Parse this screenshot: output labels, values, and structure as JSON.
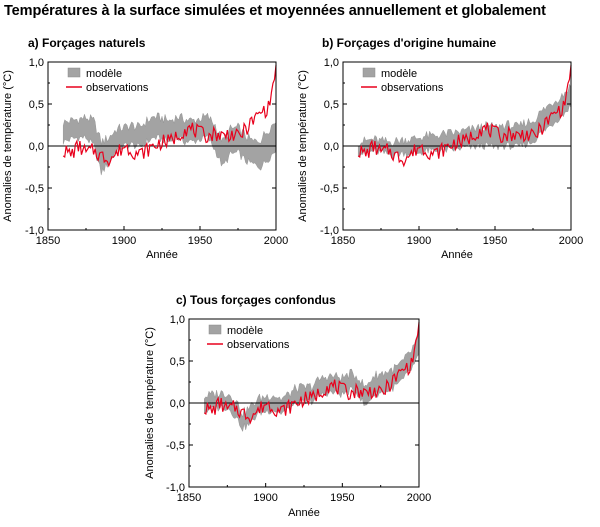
{
  "title": "Températures à la surface simulées et moyennées annuellement et globalement",
  "colors": {
    "model": "#a3a3a3",
    "observations": "#e8001c",
    "zero_line": "#000000"
  },
  "chart_data": [
    {
      "type": "area",
      "panel_title": "a) Forçages  naturels",
      "xlabel": "Année",
      "ylabel": "Anomalies de température (°C)",
      "xlim": [
        1850,
        2000
      ],
      "ylim": [
        -1.0,
        1.0
      ],
      "xticks": [
        "1850",
        "1900",
        "1950",
        "2000"
      ],
      "yticks": [
        "1,0",
        "0,5",
        "0,0",
        "-0,5",
        "-1,0"
      ],
      "legend": [
        "modèle",
        "observations"
      ],
      "x": [
        1860,
        1865,
        1870,
        1875,
        1880,
        1885,
        1890,
        1895,
        1900,
        1905,
        1910,
        1915,
        1920,
        1925,
        1930,
        1935,
        1940,
        1945,
        1950,
        1955,
        1960,
        1965,
        1970,
        1975,
        1980,
        1985,
        1990,
        1995,
        2000
      ],
      "series": [
        {
          "name": "modèle (haut)",
          "values": [
            0.28,
            0.3,
            0.32,
            0.34,
            0.3,
            0.05,
            0.1,
            0.2,
            0.22,
            0.25,
            0.22,
            0.3,
            0.35,
            0.33,
            0.3,
            0.35,
            0.32,
            0.3,
            0.33,
            0.35,
            0.25,
            0.05,
            0.2,
            0.22,
            0.12,
            0.05,
            0.08,
            0.2,
            0.3
          ]
        },
        {
          "name": "modèle (bas)",
          "values": [
            0.05,
            0.08,
            0.1,
            0.1,
            0.0,
            -0.32,
            -0.2,
            -0.05,
            0.0,
            0.02,
            -0.02,
            0.05,
            0.1,
            0.08,
            0.05,
            0.1,
            0.05,
            0.05,
            0.08,
            0.1,
            -0.05,
            -0.25,
            -0.1,
            -0.08,
            -0.18,
            -0.22,
            -0.25,
            -0.15,
            -0.05
          ]
        },
        {
          "name": "observations",
          "values": [
            -0.05,
            -0.1,
            0.0,
            -0.08,
            -0.05,
            -0.12,
            -0.15,
            -0.1,
            0.0,
            -0.05,
            -0.1,
            -0.05,
            0.0,
            0.05,
            0.05,
            0.12,
            0.2,
            0.2,
            0.15,
            0.12,
            0.15,
            0.12,
            0.15,
            0.1,
            0.2,
            0.3,
            0.4,
            0.45,
            0.9
          ]
        }
      ]
    },
    {
      "type": "area",
      "panel_title": "b) Forçages d'origine humaine",
      "xlabel": "Année",
      "ylabel": "Anomalies de température (°C)",
      "xlim": [
        1850,
        2000
      ],
      "ylim": [
        -1.0,
        1.0
      ],
      "xticks": [
        "1850",
        "1900",
        "1950",
        "2000"
      ],
      "yticks": [
        "1,0",
        "0,5",
        "0,0",
        "-0,5",
        "-1,0"
      ],
      "legend": [
        "modèle",
        "observations"
      ],
      "x": [
        1860,
        1865,
        1870,
        1875,
        1880,
        1885,
        1890,
        1895,
        1900,
        1905,
        1910,
        1915,
        1920,
        1925,
        1930,
        1935,
        1940,
        1945,
        1950,
        1955,
        1960,
        1965,
        1970,
        1975,
        1980,
        1985,
        1990,
        1995,
        2000
      ],
      "series": [
        {
          "name": "modèle (haut)",
          "values": [
            0.05,
            0.06,
            0.08,
            0.06,
            0.05,
            0.06,
            0.08,
            0.08,
            0.1,
            0.12,
            0.12,
            0.14,
            0.15,
            0.16,
            0.18,
            0.2,
            0.22,
            0.24,
            0.22,
            0.25,
            0.25,
            0.22,
            0.28,
            0.3,
            0.4,
            0.48,
            0.55,
            0.62,
            0.72
          ]
        },
        {
          "name": "modèle (bas)",
          "values": [
            -0.08,
            -0.09,
            -0.06,
            -0.08,
            -0.1,
            -0.1,
            -0.08,
            -0.1,
            -0.08,
            -0.06,
            -0.06,
            -0.05,
            -0.05,
            -0.04,
            -0.02,
            -0.02,
            0.0,
            0.0,
            -0.02,
            0.0,
            0.0,
            -0.02,
            0.02,
            0.05,
            0.15,
            0.22,
            0.3,
            0.38,
            0.48
          ]
        },
        {
          "name": "observations",
          "values": [
            -0.05,
            -0.1,
            0.0,
            -0.08,
            -0.05,
            -0.12,
            -0.15,
            -0.1,
            0.0,
            -0.05,
            -0.1,
            -0.05,
            0.0,
            0.05,
            0.05,
            0.12,
            0.2,
            0.2,
            0.15,
            0.12,
            0.15,
            0.12,
            0.15,
            0.1,
            0.2,
            0.3,
            0.4,
            0.45,
            0.9
          ]
        }
      ]
    },
    {
      "type": "area",
      "panel_title": "c) Tous forçages confondus",
      "xlabel": "Année",
      "ylabel": "Anomalies de température (°C)",
      "xlim": [
        1850,
        2000
      ],
      "ylim": [
        -1.0,
        1.0
      ],
      "xticks": [
        "1850",
        "1900",
        "1950",
        "2000"
      ],
      "yticks": [
        "1,0",
        "0,5",
        "0,0",
        "-0,5",
        "-1,0"
      ],
      "legend": [
        "modèle",
        "observations"
      ],
      "x": [
        1860,
        1865,
        1870,
        1875,
        1880,
        1885,
        1890,
        1895,
        1900,
        1905,
        1910,
        1915,
        1920,
        1925,
        1930,
        1935,
        1940,
        1945,
        1950,
        1955,
        1960,
        1965,
        1970,
        1975,
        1980,
        1985,
        1990,
        1995,
        2000
      ],
      "series": [
        {
          "name": "modèle (haut)",
          "values": [
            0.08,
            0.1,
            0.12,
            0.12,
            0.05,
            -0.12,
            -0.05,
            0.05,
            0.08,
            0.1,
            0.05,
            0.1,
            0.18,
            0.18,
            0.2,
            0.28,
            0.32,
            0.32,
            0.3,
            0.35,
            0.32,
            0.18,
            0.32,
            0.35,
            0.38,
            0.42,
            0.5,
            0.62,
            0.8
          ]
        },
        {
          "name": "modèle (bas)",
          "values": [
            -0.1,
            -0.08,
            -0.05,
            -0.05,
            -0.15,
            -0.3,
            -0.25,
            -0.12,
            -0.1,
            -0.08,
            -0.12,
            -0.08,
            0.0,
            0.0,
            0.02,
            0.08,
            0.12,
            0.12,
            0.1,
            0.15,
            0.12,
            -0.05,
            0.1,
            0.12,
            0.15,
            0.2,
            0.28,
            0.4,
            0.55
          ]
        },
        {
          "name": "observations",
          "values": [
            -0.05,
            -0.1,
            0.0,
            -0.08,
            -0.05,
            -0.12,
            -0.15,
            -0.1,
            0.0,
            -0.05,
            -0.1,
            -0.05,
            0.0,
            0.05,
            0.05,
            0.12,
            0.2,
            0.2,
            0.15,
            0.12,
            0.15,
            0.12,
            0.15,
            0.1,
            0.2,
            0.3,
            0.4,
            0.45,
            0.9
          ]
        }
      ]
    }
  ]
}
